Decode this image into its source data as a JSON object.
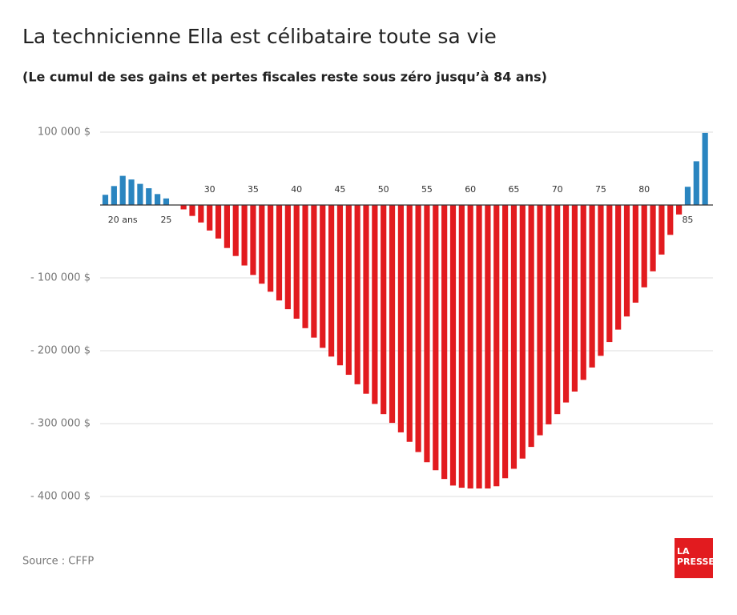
{
  "chart_data": {
    "type": "bar",
    "title": "La technicienne Ella est célibataire toute sa vie",
    "subtitle": "(Le cumul de ses gains et pertes fiscales reste sous zéro jusqu’à 84 ans)",
    "source": "Source : CFFP",
    "logo": [
      "LA",
      "PRESSE"
    ],
    "categories": [
      null,
      null,
      "20 ans",
      null,
      null,
      null,
      null,
      "25",
      null,
      null,
      null,
      null,
      "30",
      null,
      null,
      null,
      null,
      "35",
      null,
      null,
      null,
      null,
      "40",
      null,
      null,
      null,
      null,
      "45",
      null,
      null,
      null,
      null,
      "50",
      null,
      null,
      null,
      null,
      "55",
      null,
      null,
      null,
      null,
      "60",
      null,
      null,
      null,
      null,
      "65",
      null,
      null,
      null,
      null,
      "70",
      null,
      null,
      null,
      null,
      "75",
      null,
      null,
      null,
      null,
      "80",
      null,
      null,
      null,
      null,
      "85",
      null,
      null
    ],
    "values": [
      14000,
      26000,
      40000,
      35000,
      29000,
      23000,
      15000,
      9000,
      0,
      -6000,
      -15000,
      -24000,
      -35000,
      -46000,
      -59000,
      -70000,
      -83000,
      -96000,
      -108000,
      -119000,
      -131000,
      -143000,
      -156000,
      -169000,
      -182000,
      -196000,
      -208000,
      -220000,
      -233000,
      -246000,
      -259000,
      -273000,
      -287000,
      -299000,
      -312000,
      -325000,
      -339000,
      -353000,
      -364000,
      -376000,
      -385000,
      -388000,
      -389000,
      -389000,
      -389000,
      -386000,
      -375000,
      -362000,
      -348000,
      -332000,
      -316000,
      -301000,
      -287000,
      -271000,
      -256000,
      -240000,
      -223000,
      -207000,
      -188000,
      -171000,
      -153000,
      -134000,
      -113000,
      -91000,
      -68000,
      -41000,
      -13000,
      25000,
      60000,
      99000
    ],
    "positive_color": "#2a85c0",
    "negative_color": "#e21b1f",
    "ylim": [
      -400000,
      100000
    ],
    "yticks": [
      {
        "value": 100000,
        "label": "100 000 $"
      },
      {
        "value": -100000,
        "label": "- 100 000 $"
      },
      {
        "value": -200000,
        "label": "- 200 000 $"
      },
      {
        "value": -300000,
        "label": "- 300 000 $"
      },
      {
        "value": -400000,
        "label": "- 400 000 $"
      }
    ],
    "grid": true
  }
}
